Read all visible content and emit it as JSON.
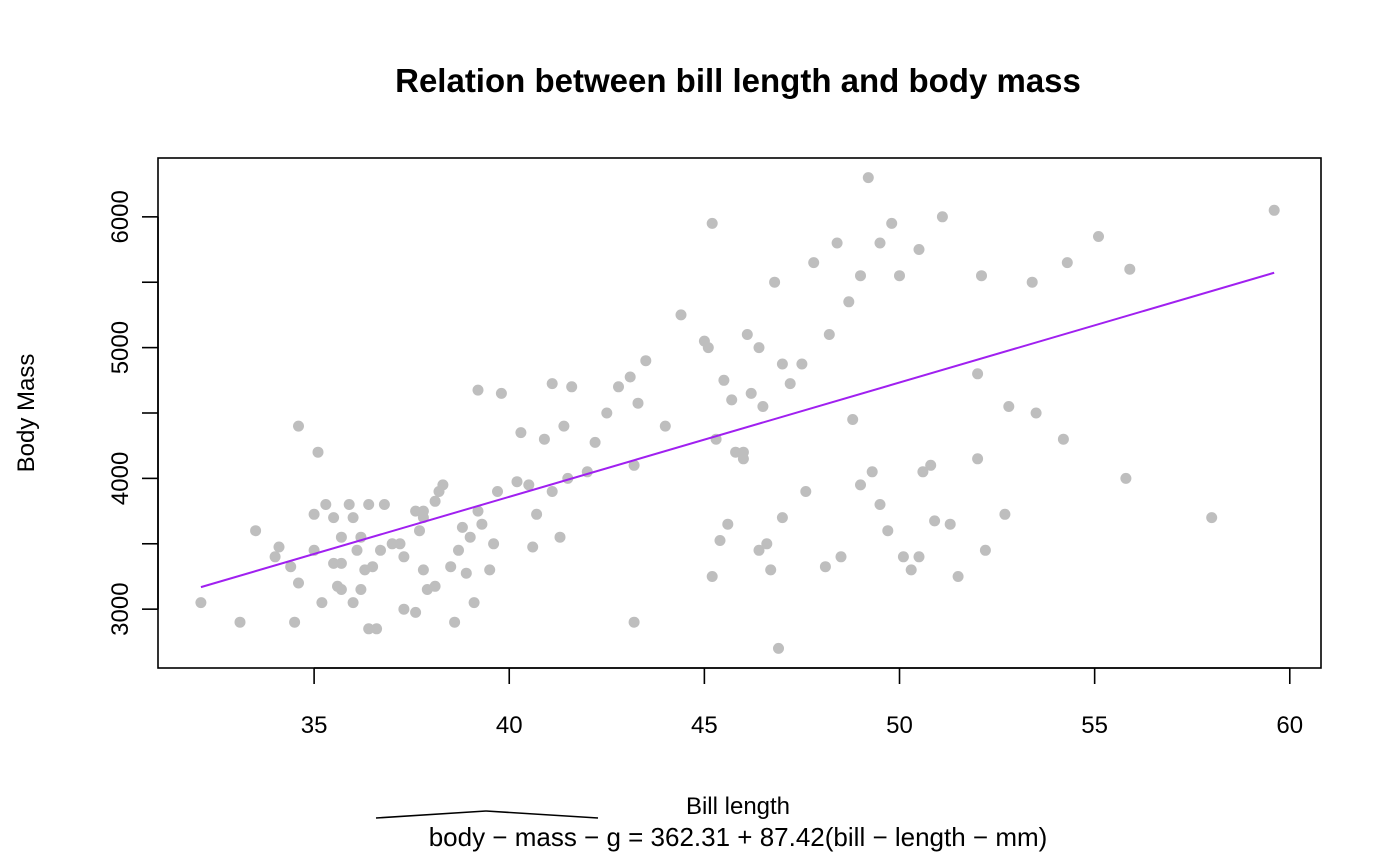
{
  "chart_data": {
    "type": "scatter",
    "title": "Relation between bill length and body mass",
    "xlabel": "Bill length",
    "ylabel": "Body Mass",
    "equation": "body − mass − g = 362.31 + 87.42(bill − length − mm)",
    "xlim": [
      31,
      60.8
    ],
    "ylim": [
      2550,
      6450
    ],
    "xticks": [
      35,
      40,
      45,
      50,
      55,
      60
    ],
    "yticks": [
      3000,
      4000,
      5000,
      6000
    ],
    "ytick_labels_shown": [
      3000,
      4000,
      5000,
      6000
    ],
    "grid": false,
    "point_color": "#bebebe",
    "line_color": "#a020f0",
    "regression": {
      "intercept": 362.31,
      "slope": 87.42,
      "x_range": [
        32.1,
        59.6
      ]
    },
    "points": [
      [
        32.1,
        3050
      ],
      [
        33.1,
        2900
      ],
      [
        33.5,
        3600
      ],
      [
        34.0,
        3400
      ],
      [
        34.1,
        3475
      ],
      [
        34.4,
        3325
      ],
      [
        34.5,
        2900
      ],
      [
        34.6,
        4400
      ],
      [
        34.6,
        3200
      ],
      [
        35.0,
        3450
      ],
      [
        35.0,
        3725
      ],
      [
        35.1,
        4200
      ],
      [
        35.2,
        3050
      ],
      [
        35.3,
        3800
      ],
      [
        35.5,
        3700
      ],
      [
        35.5,
        3350
      ],
      [
        35.6,
        3175
      ],
      [
        35.7,
        3350
      ],
      [
        35.7,
        3150
      ],
      [
        35.7,
        3550
      ],
      [
        35.9,
        3800
      ],
      [
        36.0,
        3050
      ],
      [
        36.0,
        3700
      ],
      [
        36.1,
        3450
      ],
      [
        36.2,
        3550
      ],
      [
        36.2,
        3150
      ],
      [
        36.3,
        3300
      ],
      [
        36.4,
        3800
      ],
      [
        36.4,
        2850
      ],
      [
        36.5,
        3325
      ],
      [
        36.6,
        2850
      ],
      [
        36.7,
        3450
      ],
      [
        36.8,
        3800
      ],
      [
        37.0,
        3500
      ],
      [
        37.2,
        3500
      ],
      [
        37.3,
        3000
      ],
      [
        37.3,
        3400
      ],
      [
        37.6,
        2975
      ],
      [
        37.6,
        3750
      ],
      [
        37.7,
        3600
      ],
      [
        37.8,
        3300
      ],
      [
        37.8,
        3750
      ],
      [
        37.8,
        3700
      ],
      [
        37.9,
        3150
      ],
      [
        38.1,
        3825
      ],
      [
        38.1,
        3175
      ],
      [
        38.2,
        3900
      ],
      [
        38.3,
        3950
      ],
      [
        38.5,
        3325
      ],
      [
        38.6,
        2900
      ],
      [
        38.7,
        3450
      ],
      [
        38.8,
        3625
      ],
      [
        38.9,
        3275
      ],
      [
        39.0,
        3550
      ],
      [
        39.1,
        3050
      ],
      [
        39.2,
        3750
      ],
      [
        39.2,
        4675
      ],
      [
        39.3,
        3650
      ],
      [
        39.5,
        3300
      ],
      [
        39.6,
        3500
      ],
      [
        39.7,
        3900
      ],
      [
        39.8,
        4650
      ],
      [
        40.2,
        3975
      ],
      [
        40.3,
        4350
      ],
      [
        40.5,
        3950
      ],
      [
        40.6,
        3475
      ],
      [
        40.7,
        3725
      ],
      [
        40.9,
        4300
      ],
      [
        41.1,
        4725
      ],
      [
        41.1,
        3900
      ],
      [
        41.3,
        3550
      ],
      [
        41.4,
        4400
      ],
      [
        41.5,
        4000
      ],
      [
        41.6,
        4700
      ],
      [
        42.0,
        4050
      ],
      [
        42.2,
        4275
      ],
      [
        42.5,
        4500
      ],
      [
        42.8,
        4700
      ],
      [
        43.1,
        4775
      ],
      [
        43.2,
        4100
      ],
      [
        43.3,
        4575
      ],
      [
        43.5,
        4900
      ],
      [
        44.0,
        4400
      ],
      [
        44.4,
        5250
      ],
      [
        45.0,
        5050
      ],
      [
        45.1,
        5000
      ],
      [
        45.2,
        5950
      ],
      [
        45.3,
        4300
      ],
      [
        45.5,
        4750
      ],
      [
        45.7,
        4600
      ],
      [
        45.8,
        4200
      ],
      [
        46.1,
        5100
      ],
      [
        46.2,
        4650
      ],
      [
        46.4,
        5000
      ],
      [
        46.5,
        4550
      ],
      [
        46.8,
        5500
      ],
      [
        47.0,
        4875
      ],
      [
        47.5,
        4875
      ],
      [
        47.8,
        5650
      ],
      [
        48.2,
        5100
      ],
      [
        48.4,
        5800
      ],
      [
        48.7,
        5350
      ],
      [
        49.0,
        5550
      ],
      [
        49.2,
        6300
      ],
      [
        49.5,
        5800
      ],
      [
        49.8,
        5950
      ],
      [
        50.0,
        5550
      ],
      [
        50.5,
        5750
      ],
      [
        51.1,
        6000
      ],
      [
        52.1,
        5550
      ],
      [
        53.4,
        5500
      ],
      [
        54.3,
        5650
      ],
      [
        55.1,
        5850
      ],
      [
        55.9,
        5600
      ],
      [
        59.6,
        6050
      ],
      [
        43.2,
        2900
      ],
      [
        45.2,
        3250
      ],
      [
        45.4,
        3525
      ],
      [
        45.6,
        3650
      ],
      [
        46.0,
        4150
      ],
      [
        46.4,
        3450
      ],
      [
        46.6,
        3500
      ],
      [
        46.7,
        3300
      ],
      [
        46.9,
        2700
      ],
      [
        47.0,
        3700
      ],
      [
        47.6,
        3900
      ],
      [
        48.1,
        3325
      ],
      [
        48.5,
        3400
      ],
      [
        49.0,
        3950
      ],
      [
        49.5,
        3800
      ],
      [
        49.7,
        3600
      ],
      [
        50.1,
        3400
      ],
      [
        50.3,
        3300
      ],
      [
        50.5,
        3400
      ],
      [
        50.9,
        3675
      ],
      [
        51.3,
        3650
      ],
      [
        51.5,
        3250
      ],
      [
        52.2,
        3450
      ],
      [
        52.7,
        3725
      ],
      [
        55.8,
        4000
      ],
      [
        58.0,
        3700
      ],
      [
        54.2,
        4300
      ],
      [
        53.5,
        4500
      ],
      [
        52.8,
        4550
      ],
      [
        52.0,
        4800
      ],
      [
        52.0,
        4150
      ],
      [
        50.8,
        4100
      ],
      [
        50.6,
        4050
      ],
      [
        49.3,
        4050
      ],
      [
        48.8,
        4450
      ],
      [
        47.2,
        4725
      ],
      [
        46.0,
        4200
      ]
    ]
  }
}
